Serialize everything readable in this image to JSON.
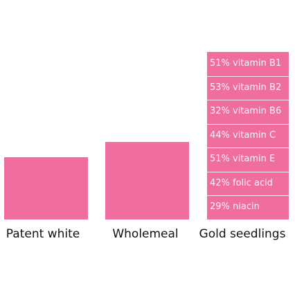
{
  "chart_data": {
    "type": "bar",
    "title": "",
    "xlabel": "",
    "ylabel": "",
    "categories": [
      "Patent white",
      "Wholemeal",
      "Gold seedlings"
    ],
    "values": [
      90,
      112,
      242
    ],
    "ylim": [
      0,
      242
    ],
    "bar_color": "#f06d9f",
    "segment_labels": [
      "51% vitamin  B1",
      "53% vitamin  B2",
      "32% vitamin  B6",
      "44% vitamin  C",
      "51% vitamin  E",
      "42% folic acid",
      "29% niacin"
    ]
  }
}
